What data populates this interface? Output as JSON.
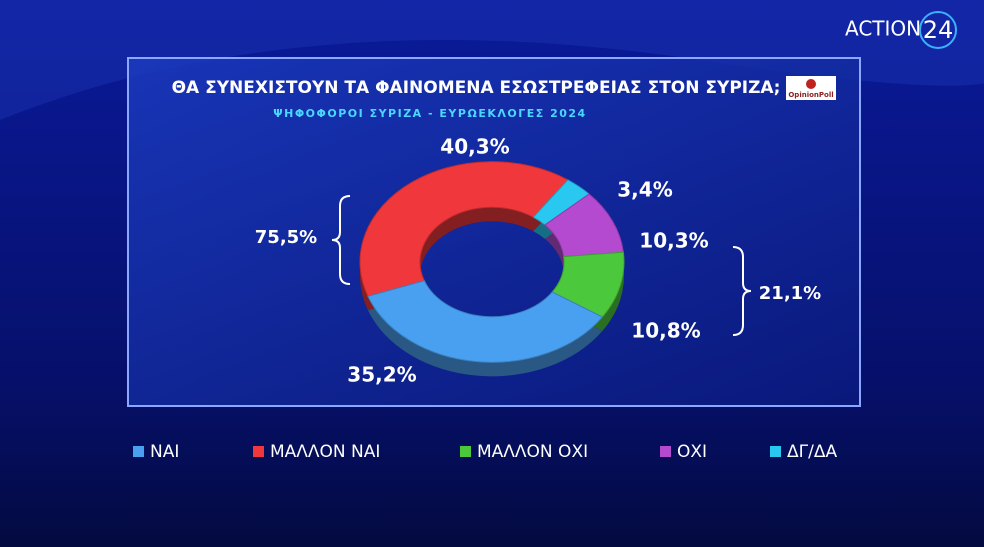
{
  "chart_data": {
    "type": "donut",
    "title": "ΘΑ ΣΥΝΕΧΙΣΤΟΥΝ ΤΑ ΦΑΙΝΟΜΕΝΑ ΕΣΩΣΤΡΕΦΕΙΑΣ ΣΤΟΝ ΣΥΡΙΖΑ;",
    "subtitle": "ΨΗΦΟΦΟΡΟΙ ΣΥΡΙΖΑ - ΕΥΡΩΕΚΛΟΓΕΣ 2024",
    "categories": [
      "ΝΑΙ",
      "ΜΑΛΛΟΝ ΝΑΙ",
      "ΜΑΛΛΟΝ ΟΧΙ",
      "ΟΧΙ",
      "ΔΓ/ΔΑ"
    ],
    "values": [
      35.2,
      40.3,
      10.8,
      10.3,
      3.4
    ],
    "value_labels": [
      "35,2%",
      "40,3%",
      "10,8%",
      "10,3%",
      "3,4%"
    ],
    "colors": [
      "#4aa0f0",
      "#f0383c",
      "#4cc83c",
      "#b44ad0",
      "#28c8f0"
    ],
    "groups": [
      {
        "value": 75.5,
        "label": "75,5%"
      },
      {
        "value": 21.1,
        "label": "21,1%"
      }
    ]
  },
  "branding": {
    "channel": "ACTION",
    "channel_number": "24",
    "pollster": "OpinionPoll"
  }
}
